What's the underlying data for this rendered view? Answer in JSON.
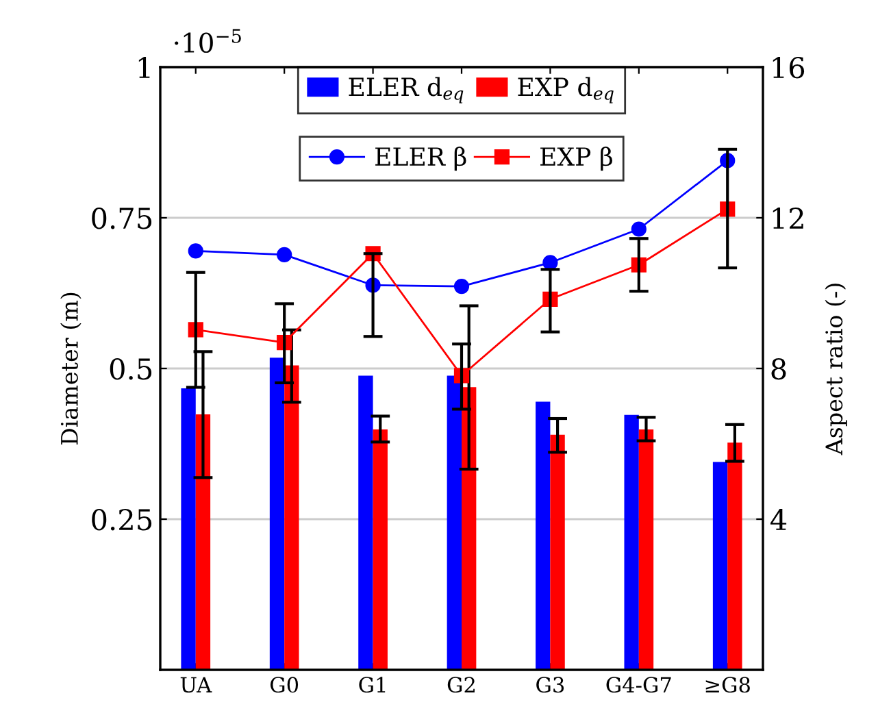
{
  "chart_data": {
    "type": "bar",
    "categories": [
      "UA",
      "G0",
      "G1",
      "G2",
      "G3",
      "G4-G7",
      "≥G8"
    ],
    "ylabel": "Diameter (m)",
    "y2label": "Aspect ratio (-)",
    "ylim": [
      0,
      1
    ],
    "yticks": [
      0.25,
      0.5,
      0.75,
      1
    ],
    "y2lim": [
      0,
      16
    ],
    "y2ticks": [
      4,
      8,
      12,
      16
    ],
    "grid": "y",
    "legend": "top",
    "annotations": [
      "·10$^{−5}$"
    ],
    "series": [
      {
        "name": "ELER d$_{eq}$",
        "axis": "y",
        "color": "#0000ff",
        "values": [
          0.467,
          0.518,
          0.488,
          0.488,
          0.445,
          0.423,
          0.345
        ]
      },
      {
        "name": "EXP d$_{eq}$",
        "axis": "y",
        "color": "#ff0000",
        "values": [
          0.424,
          0.505,
          0.399,
          0.469,
          0.39,
          0.399,
          0.377
        ],
        "errors": [
          [
            0.319,
            0.528
          ],
          [
            0.444,
            0.564
          ],
          [
            0.378,
            0.421
          ],
          [
            0.333,
            0.604
          ],
          [
            0.361,
            0.417
          ],
          [
            0.38,
            0.419
          ],
          [
            0.346,
            0.407
          ]
        ]
      },
      {
        "name": "ELER β",
        "type": "line",
        "axis": "y2",
        "color": "#0000ff",
        "marker": "circle",
        "values": [
          11.12,
          11.02,
          10.21,
          10.18,
          10.81,
          11.7,
          13.52
        ]
      },
      {
        "name": "EXP β",
        "type": "line",
        "axis": "y2",
        "color": "#ff0000",
        "marker": "square",
        "values": [
          9.03,
          8.69,
          11.05,
          7.81,
          9.84,
          10.75,
          12.23
        ],
        "errors": [
          [
            7.5,
            10.55
          ],
          [
            7.62,
            9.72
          ],
          [
            8.85,
            11.05
          ],
          [
            6.92,
            8.65
          ],
          [
            8.97,
            10.63
          ],
          [
            10.05,
            11.45
          ],
          [
            10.67,
            13.82
          ]
        ]
      }
    ]
  }
}
